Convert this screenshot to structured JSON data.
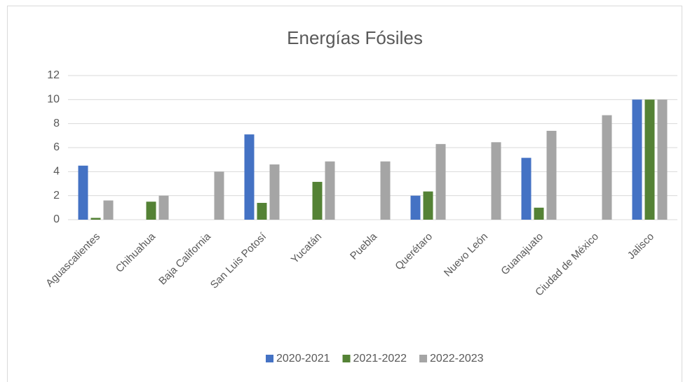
{
  "chart_data": {
    "type": "bar",
    "title": "Energías Fósiles",
    "categories": [
      "Aguascalientes",
      "Chihuahua",
      "Baja California",
      "San Luis Potosí",
      "Yucatán",
      "Puebla",
      "Querétaro",
      "Nuevo León",
      "Guanajuato",
      "Ciudad de México",
      "Jalisco"
    ],
    "series": [
      {
        "name": "2020-2021",
        "color": "#4472c4",
        "values": [
          4.5,
          0,
          0,
          7.1,
          0,
          0,
          2.0,
          0,
          5.15,
          0,
          10
        ]
      },
      {
        "name": "2021-2022",
        "color": "#548235",
        "values": [
          0.15,
          1.5,
          0,
          1.4,
          3.15,
          0,
          2.35,
          0,
          1.0,
          0,
          10
        ]
      },
      {
        "name": "2022-2023",
        "color": "#a5a5a5",
        "values": [
          1.6,
          2.0,
          4.0,
          4.6,
          4.85,
          4.85,
          6.3,
          6.45,
          7.4,
          8.7,
          10
        ]
      }
    ],
    "ylim": [
      0,
      12
    ],
    "yticks": [
      0,
      2,
      4,
      6,
      8,
      10,
      12
    ],
    "grid": true,
    "legend": "bottom"
  }
}
